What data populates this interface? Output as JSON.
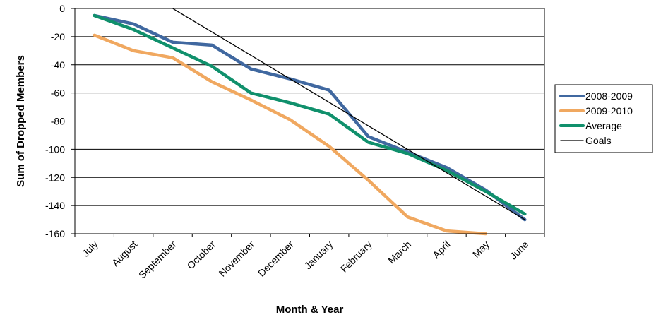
{
  "chart_data": {
    "type": "line",
    "title": "",
    "xlabel": "Month & Year",
    "ylabel": "Sum of Dropped Members",
    "categories": [
      "July",
      "August",
      "September",
      "October",
      "November",
      "December",
      "January",
      "February",
      "March",
      "April",
      "May",
      "June"
    ],
    "ylim": [
      -160,
      0
    ],
    "yticks": [
      0,
      -20,
      -40,
      -60,
      -80,
      -100,
      -120,
      -140,
      -160
    ],
    "grid": true,
    "legend_position": "right",
    "series": [
      {
        "name": "2008-2009",
        "color": "#4068A0",
        "width": 4.5,
        "values": [
          -5,
          -11,
          -24,
          -26,
          -43,
          -50,
          -58,
          -91,
          -102,
          -113,
          -129,
          -150
        ]
      },
      {
        "name": "2009-2010",
        "color": "#F0A860",
        "width": 4.5,
        "values": [
          -19,
          -30,
          -35,
          -52,
          -65,
          -79,
          -98,
          -122,
          -148,
          -158,
          -160,
          null
        ]
      },
      {
        "name": "Average",
        "color": "#10906C",
        "width": 4.5,
        "values": [
          -5,
          -15,
          -28,
          -41,
          -60,
          -67,
          -75,
          -95,
          -103,
          -115,
          -130,
          -146
        ]
      },
      {
        "name": "Goals",
        "color": "#000000",
        "width": 1.3,
        "points": [
          [
            2,
            0
          ],
          [
            11,
            -150
          ]
        ]
      }
    ]
  }
}
